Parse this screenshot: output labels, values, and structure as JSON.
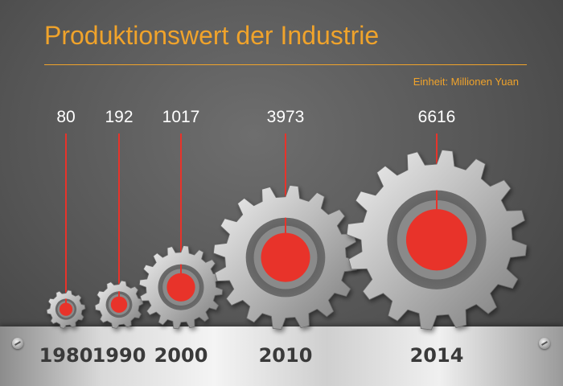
{
  "chart_data": {
    "type": "bar",
    "title": "Produktionswert der Industrie",
    "unit": "Einheit: Millionen Yuan",
    "categories": [
      "1980",
      "1990",
      "2000",
      "2010",
      "2014"
    ],
    "values": [
      80,
      192,
      1017,
      3973,
      6616
    ],
    "value_labels": [
      "80",
      "192",
      "1017",
      "3973",
      "6616"
    ],
    "colors": {
      "accent": "#f0a32b",
      "marker": "#e8332a",
      "gear": "#c8c8c8"
    }
  }
}
